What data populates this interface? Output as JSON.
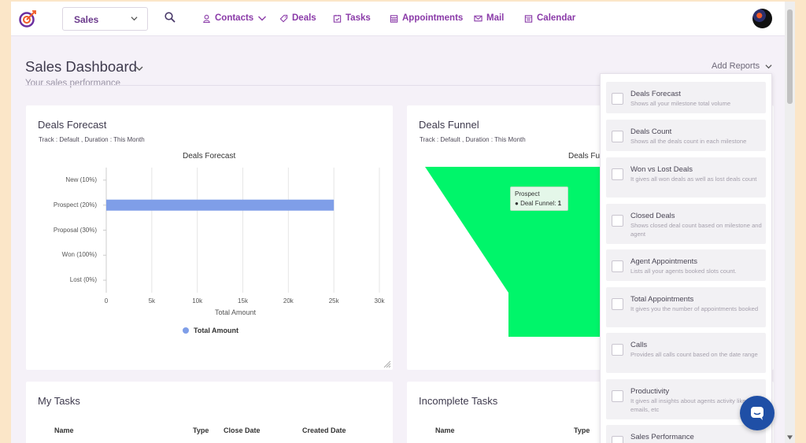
{
  "nav": {
    "module": "Sales",
    "items": [
      {
        "label": "Contacts",
        "icon": "user-icon"
      },
      {
        "label": "Deals",
        "icon": "tag-icon"
      },
      {
        "label": "Tasks",
        "icon": "task-icon"
      },
      {
        "label": "Appointments",
        "icon": "calendar-grid-icon"
      },
      {
        "label": "Mail",
        "icon": "mail-icon"
      },
      {
        "label": "Calendar",
        "icon": "calendar-icon"
      }
    ]
  },
  "header": {
    "title": "Sales Dashboard",
    "subtitle": "Your sales performance",
    "add_reports": "Add Reports"
  },
  "deals_forecast": {
    "title": "Deals Forecast",
    "meta": "Track : Default ,  Duration : This Month"
  },
  "deals_funnel": {
    "title": "Deals Funnel",
    "meta": "Track : Default ,  Duration : This Month",
    "chart_title_partial": "Deals Fu",
    "tooltip_title": "Prospect",
    "tooltip_series": "Deal Funnel:",
    "tooltip_value": "1"
  },
  "chart_data": [
    {
      "type": "bar",
      "orientation": "horizontal",
      "title": "Deals Forecast",
      "categories": [
        "New (10%)",
        "Prospect (20%)",
        "Proposal (30%)",
        "Won (100%)",
        "Lost (0%)"
      ],
      "series": [
        {
          "name": "Total Amount",
          "values": [
            0,
            25000,
            0,
            0,
            0
          ]
        }
      ],
      "xlabel": "Total Amount",
      "xlim": [
        0,
        30000
      ],
      "xticks": [
        "0",
        "5k",
        "10k",
        "15k",
        "20k",
        "25k",
        "30k"
      ],
      "legend": "bottom",
      "grid": true,
      "color": "#7f9ee8"
    },
    {
      "type": "funnel",
      "title": "Deals Funnel",
      "categories": [
        "Prospect"
      ],
      "series": [
        {
          "name": "Deal Funnel",
          "values": [
            1
          ]
        }
      ],
      "color": "#00f56a"
    }
  ],
  "my_tasks": {
    "title": "My Tasks",
    "columns": [
      "Name",
      "Type",
      "Close Date",
      "Created Date"
    ]
  },
  "incomplete_tasks": {
    "title": "Incomplete Tasks",
    "columns": [
      "Name",
      "Type"
    ]
  },
  "reports": [
    {
      "name": "Deals Forecast",
      "desc": "Shows all your milestone total volume"
    },
    {
      "name": "Deals Count",
      "desc": "Shows all the deals count in each milestone"
    },
    {
      "name": "Won vs Lost Deals",
      "desc": "It gives all won deals as well as lost deals count"
    },
    {
      "name": "Closed Deals",
      "desc": "Shows closed deal count based on milestone and agent"
    },
    {
      "name": "Agent Appointments",
      "desc": "Lists all your agents booked slots count."
    },
    {
      "name": "Total Appointments",
      "desc": "It gives you the number of appointments booked"
    },
    {
      "name": "Calls",
      "desc": "Provides all calls count based on the date range"
    },
    {
      "name": "Productivity",
      "desc": "It gives all insights about agents activity like calls, emails, etc"
    },
    {
      "name": "Sales Performance",
      "desc": ""
    }
  ],
  "colors": {
    "accent": "#8a3aa8",
    "funnel": "#00f56a",
    "bar": "#7f9ee8",
    "chat": "#1f4fa6"
  }
}
